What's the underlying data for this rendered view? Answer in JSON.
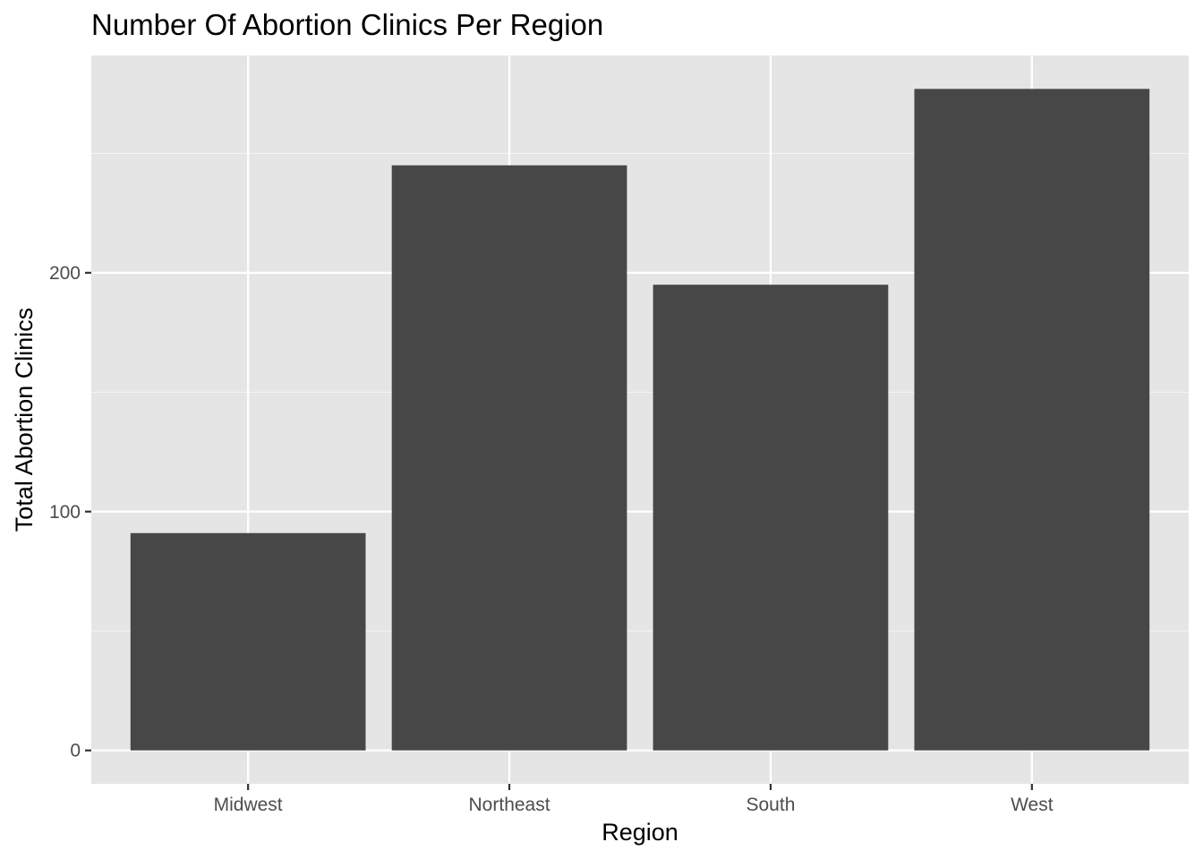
{
  "chart_data": {
    "type": "bar",
    "title": "Number Of Abortion Clinics Per Region",
    "xlabel": "Region",
    "ylabel": "Total Abortion Clinics",
    "categories": [
      "Midwest",
      "Northeast",
      "South",
      "West"
    ],
    "values": [
      91,
      245,
      195,
      277
    ],
    "ylim": [
      -14,
      291
    ],
    "yticks": [
      0,
      100,
      200
    ],
    "yticks_minor": [
      50,
      150,
      250
    ],
    "bar_color": "#474747",
    "panel_color": "#e5e5e5",
    "grid": true,
    "legend": "none"
  }
}
